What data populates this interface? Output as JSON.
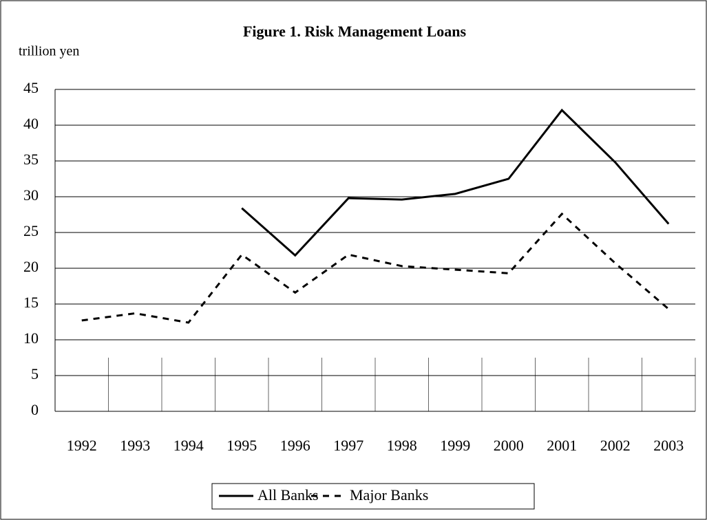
{
  "chart_data": {
    "type": "line",
    "title": "Figure 1. Risk Management Loans",
    "y_label": "trillion yen",
    "categories": [
      "1992",
      "1993",
      "1994",
      "1995",
      "1996",
      "1997",
      "1998",
      "1999",
      "2000",
      "2001",
      "2002",
      "2003"
    ],
    "series": [
      {
        "name": "All Banks",
        "color": "#000000",
        "dash": "solid",
        "values": [
          null,
          null,
          null,
          28.4,
          21.8,
          29.8,
          29.6,
          30.4,
          32.5,
          42.1,
          34.8,
          26.2
        ]
      },
      {
        "name": "Major Banks",
        "color": "#000000",
        "dash": "dashed",
        "values": [
          12.7,
          13.7,
          12.4,
          21.9,
          16.6,
          21.9,
          20.3,
          19.8,
          19.3,
          27.6,
          20.7,
          14.3
        ]
      }
    ],
    "ylim": [
      0,
      45
    ],
    "yticks": [
      0,
      5,
      10,
      15,
      20,
      25,
      30,
      35,
      40,
      45
    ],
    "grid": true,
    "legend": "bottom"
  }
}
